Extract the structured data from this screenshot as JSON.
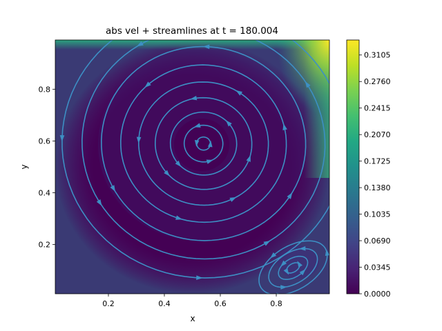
{
  "chart_data": {
    "type": "heatmap",
    "title": "abs vel + streamlines at t = 180.004",
    "xlabel": "x",
    "ylabel": "y",
    "xlim": [
      0.01,
      0.99
    ],
    "ylim": [
      0.01,
      0.99
    ],
    "x_ticks": [
      "0.2",
      "0.4",
      "0.6",
      "0.8"
    ],
    "y_ticks": [
      "0.2",
      "0.4",
      "0.6",
      "0.8"
    ],
    "x_tick_values": [
      0.2,
      0.4,
      0.6,
      0.8
    ],
    "y_tick_values": [
      0.2,
      0.4,
      0.6,
      0.8
    ],
    "colorbar": {
      "min": 0.0,
      "max": 0.33,
      "ticks": [
        "0.0000",
        "0.0345",
        "0.0690",
        "0.1035",
        "0.1380",
        "0.1725",
        "0.2070",
        "0.2415",
        "0.2760",
        "0.3105"
      ],
      "tick_values": [
        0.0,
        0.0345,
        0.069,
        0.1035,
        0.138,
        0.1725,
        0.207,
        0.2415,
        0.276,
        0.3105
      ],
      "colormap": "viridis"
    },
    "overlay": "streamlines",
    "streamline_color": "#3d8fc4",
    "primary_vortex_center": [
      0.54,
      0.59
    ],
    "secondary_vortex_center": [
      0.86,
      0.11
    ],
    "grid": false
  }
}
